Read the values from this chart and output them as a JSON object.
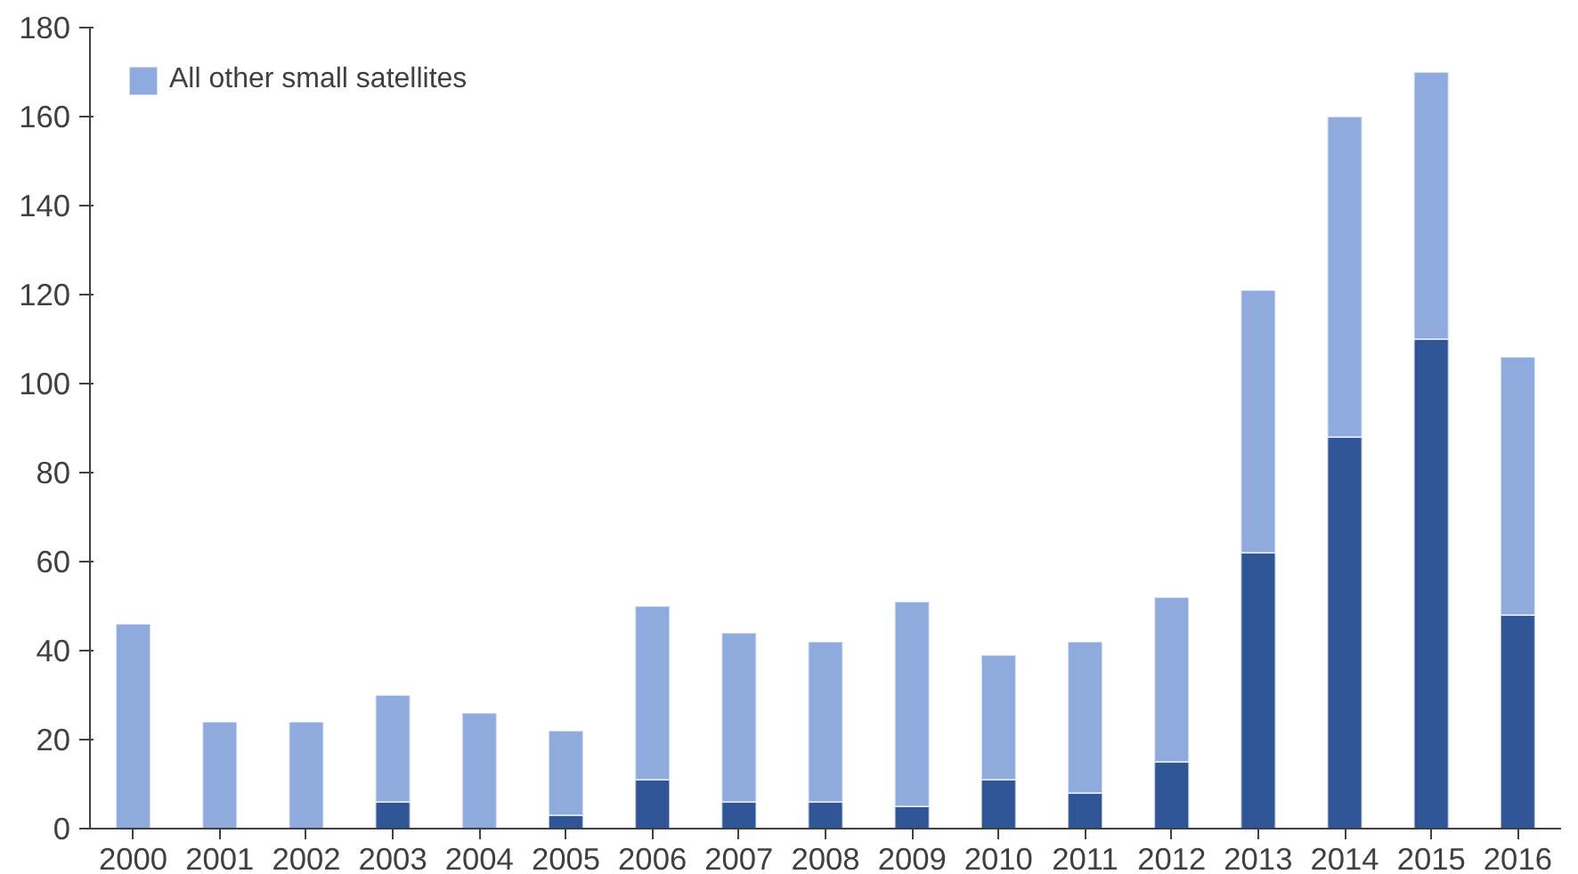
{
  "chart_data": {
    "type": "bar",
    "stacked": true,
    "categories": [
      "2000",
      "2001",
      "2002",
      "2003",
      "2004",
      "2005",
      "2006",
      "2007",
      "2008",
      "2009",
      "2010",
      "2011",
      "2012",
      "2013",
      "2014",
      "2015",
      "2016"
    ],
    "series": [
      {
        "color": "#2f5597",
        "values": [
          0,
          0,
          0,
          6,
          0,
          3,
          11,
          6,
          6,
          5,
          11,
          8,
          15,
          62,
          88,
          110,
          48
        ]
      },
      {
        "name": "All other small satellites",
        "color": "#8faadc",
        "values": [
          46,
          24,
          24,
          24,
          26,
          19,
          39,
          38,
          36,
          46,
          28,
          34,
          37,
          59,
          72,
          60,
          58
        ]
      }
    ],
    "ylim": [
      0,
      180
    ],
    "yticks": [
      0,
      20,
      40,
      60,
      80,
      100,
      120,
      140,
      160,
      180
    ],
    "grid": false,
    "legend": "top left"
  }
}
